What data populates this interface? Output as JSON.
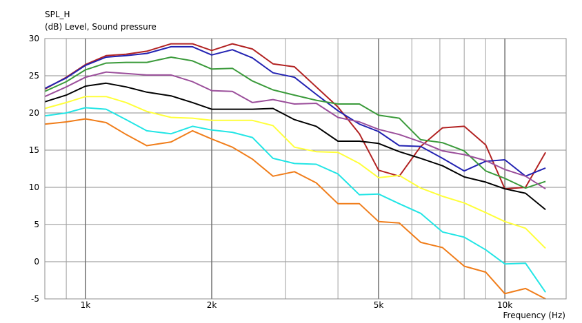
{
  "chart_data": {
    "type": "line",
    "title": "SPL_H",
    "ylabel": "(dB)  Level, Sound pressure",
    "xlabel": "Frequency  (Hz)",
    "x_scale": "log",
    "xlim": [
      800,
      14000
    ],
    "ylim": [
      -5,
      30
    ],
    "grid": true,
    "yticks": [
      30,
      25,
      20,
      15,
      10,
      5,
      0,
      -5
    ],
    "xticks": [
      {
        "value": 1000,
        "label": "1k"
      },
      {
        "value": 2000,
        "label": "2k"
      },
      {
        "value": 5000,
        "label": "5k"
      },
      {
        "value": 10000,
        "label": "10k"
      }
    ],
    "x_minor": [
      800,
      900,
      3000,
      4000,
      6000,
      7000,
      8000,
      9000
    ],
    "x": [
      800,
      900,
      1000,
      1120,
      1250,
      1400,
      1600,
      1800,
      2000,
      2240,
      2500,
      2800,
      3150,
      3550,
      4000,
      4500,
      5000,
      5600,
      6300,
      7100,
      8000,
      9000,
      10000,
      11200,
      12500
    ],
    "series": [
      {
        "color": "#b22222",
        "values": [
          23.2,
          24.8,
          26.5,
          27.7,
          27.9,
          28.3,
          29.3,
          29.3,
          28.4,
          29.3,
          28.6,
          26.6,
          26.2,
          23.5,
          20.8,
          17.2,
          12.3,
          11.5,
          15.5,
          18.0,
          18.2,
          15.7,
          9.8,
          10.0,
          14.7
        ]
      },
      {
        "color": "#2222b2",
        "values": [
          23.3,
          24.7,
          26.4,
          27.5,
          27.7,
          28.0,
          28.9,
          28.9,
          27.8,
          28.5,
          27.4,
          25.4,
          24.8,
          22.5,
          20.3,
          18.5,
          17.5,
          15.6,
          15.5,
          13.9,
          12.2,
          13.5,
          13.7,
          11.5,
          12.6
        ]
      },
      {
        "color": "#3a9a3a",
        "values": [
          22.9,
          24.2,
          25.8,
          26.7,
          26.8,
          26.8,
          27.5,
          27.0,
          25.9,
          26.0,
          24.3,
          23.1,
          22.4,
          21.7,
          21.2,
          21.2,
          19.7,
          19.3,
          16.4,
          16.0,
          14.9,
          12.2,
          11.2,
          9.9,
          10.8
        ]
      },
      {
        "color": "#9b4f9b",
        "values": [
          22.2,
          23.5,
          24.8,
          25.5,
          25.3,
          25.1,
          25.1,
          24.2,
          23.0,
          22.9,
          21.4,
          21.8,
          21.2,
          21.3,
          19.4,
          18.8,
          17.8,
          17.1,
          16.1,
          14.9,
          14.4,
          13.6,
          12.4,
          11.5,
          9.8
        ]
      },
      {
        "color": "#000000",
        "values": [
          21.5,
          22.4,
          23.6,
          24.0,
          23.5,
          22.8,
          22.3,
          21.4,
          20.5,
          20.5,
          20.5,
          20.6,
          19.1,
          18.2,
          16.2,
          16.2,
          15.9,
          14.8,
          13.9,
          12.9,
          11.4,
          10.7,
          9.8,
          9.2,
          7.0
        ]
      },
      {
        "color": "#ffff3a",
        "values": [
          20.6,
          21.4,
          22.2,
          22.2,
          21.4,
          20.2,
          19.4,
          19.3,
          19.0,
          19.0,
          19.0,
          18.3,
          15.4,
          14.8,
          14.7,
          13.2,
          11.3,
          11.6,
          9.9,
          8.8,
          7.9,
          6.6,
          5.4,
          4.5,
          1.8
        ]
      },
      {
        "color": "#22e5e5",
        "values": [
          19.6,
          20.0,
          20.7,
          20.5,
          19.1,
          17.6,
          17.2,
          18.2,
          17.7,
          17.4,
          16.7,
          13.9,
          13.2,
          13.1,
          11.8,
          9.0,
          9.1,
          7.8,
          6.5,
          4.0,
          3.3,
          1.6,
          -0.3,
          -0.2,
          -4.1
        ]
      },
      {
        "color": "#f07d1a",
        "values": [
          18.5,
          18.8,
          19.2,
          18.7,
          17.1,
          15.6,
          16.1,
          17.6,
          16.5,
          15.4,
          13.8,
          11.5,
          12.1,
          10.6,
          7.8,
          7.8,
          5.4,
          5.2,
          2.6,
          1.9,
          -0.6,
          -1.4,
          -4.3,
          -3.6,
          -5.0
        ]
      }
    ]
  }
}
